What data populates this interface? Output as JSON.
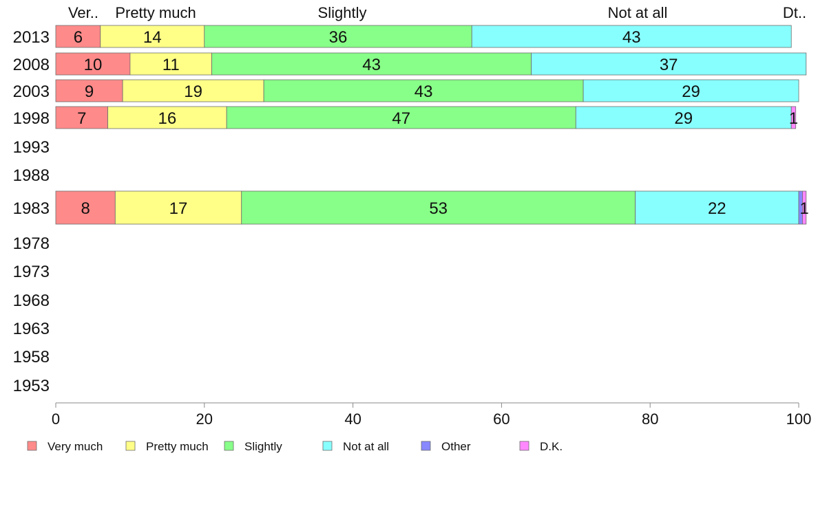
{
  "chart_data": {
    "type": "bar",
    "orientation": "horizontal",
    "stacked": true,
    "xlim": [
      0,
      100
    ],
    "xticks": [
      0,
      20,
      40,
      60,
      80,
      100
    ],
    "categories": [
      "2013",
      "2008",
      "2003",
      "1998",
      "1993",
      "1988",
      "1983",
      "1978",
      "1973",
      "1968",
      "1963",
      "1958",
      "1953"
    ],
    "series": [
      {
        "name": "Very much",
        "color": "#ff8a8a",
        "values": [
          6,
          10,
          9,
          7,
          null,
          null,
          8,
          null,
          null,
          null,
          null,
          null,
          null
        ],
        "labels": [
          "6",
          "10",
          "9",
          "7",
          "",
          "",
          "8",
          "",
          "",
          "",
          "",
          "",
          ""
        ]
      },
      {
        "name": "Pretty much",
        "color": "#ffff88",
        "values": [
          14,
          11,
          19,
          16,
          null,
          null,
          17,
          null,
          null,
          null,
          null,
          null,
          null
        ],
        "labels": [
          "14",
          "11",
          "19",
          "16",
          "",
          "",
          "17",
          "",
          "",
          "",
          "",
          "",
          ""
        ]
      },
      {
        "name": "Slightly",
        "color": "#88ff88",
        "values": [
          36,
          43,
          43,
          47,
          null,
          null,
          53,
          null,
          null,
          null,
          null,
          null,
          null
        ],
        "labels": [
          "36",
          "43",
          "43",
          "47",
          "",
          "",
          "53",
          "",
          "",
          "",
          "",
          "",
          ""
        ]
      },
      {
        "name": "Not at all",
        "color": "#88ffff",
        "values": [
          43,
          37,
          29,
          29,
          null,
          null,
          22,
          null,
          null,
          null,
          null,
          null,
          null
        ],
        "labels": [
          "43",
          "37",
          "29",
          "29",
          "",
          "",
          "22",
          "",
          "",
          "",
          "",
          "",
          ""
        ]
      },
      {
        "name": "Other",
        "color": "#8888ff",
        "values": [
          0,
          0,
          0,
          0,
          null,
          null,
          0.5,
          null,
          null,
          null,
          null,
          null,
          null
        ],
        "labels": [
          "",
          "",
          "",
          "",
          "",
          "",
          "",
          "",
          "",
          "",
          "",
          "",
          ""
        ]
      },
      {
        "name": "D.K.",
        "color": "#ff88ff",
        "values": [
          0,
          0,
          0,
          0.6,
          null,
          null,
          0.5,
          null,
          null,
          null,
          null,
          null,
          null
        ],
        "labels": [
          "",
          "",
          "",
          "1",
          "",
          "",
          "1",
          "",
          "",
          "",
          "",
          "",
          ""
        ]
      }
    ],
    "top_labels": [
      "Ver..",
      "Pretty much",
      "Slightly",
      "Not at all",
      "Dt.."
    ],
    "legend_position": "bottom",
    "grid": false
  }
}
